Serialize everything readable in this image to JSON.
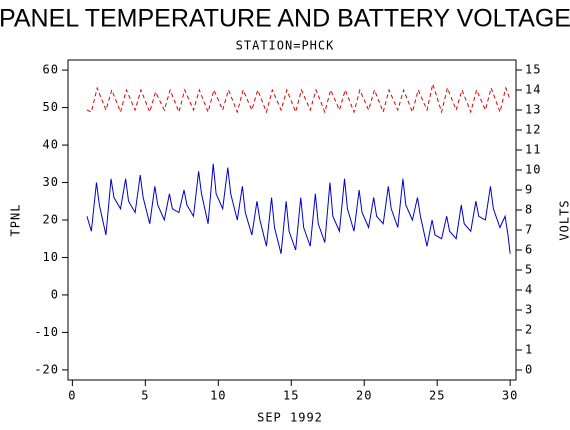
{
  "chart_data": {
    "type": "line",
    "title": "PANEL TEMPERATURE AND BATTERY VOLTAGE",
    "subtitle": "STATION=PHCK",
    "xlabel": "SEP 1992",
    "ylabel": "TPNL",
    "y2label": "VOLTS",
    "xlim": [
      -0.3,
      30.4
    ],
    "xticks": [
      0,
      5,
      10,
      15,
      20,
      25,
      30
    ],
    "ylim": [
      -22.7,
      62.7
    ],
    "yticks": [
      -20,
      -10,
      0,
      10,
      20,
      30,
      40,
      50,
      60
    ],
    "y2lim": [
      -0.5,
      15.5
    ],
    "y2ticks": [
      0,
      1,
      2,
      3,
      4,
      5,
      6,
      7,
      8,
      9,
      10,
      11,
      12,
      13,
      14,
      15
    ],
    "series": [
      {
        "name": "TPNL",
        "color": "#0000cc",
        "dash": false,
        "axis": "y",
        "x": [
          1.0,
          1.3,
          1.65,
          1.85,
          2.3,
          2.65,
          2.85,
          3.3,
          3.65,
          3.85,
          4.3,
          4.65,
          4.85,
          5.3,
          5.65,
          5.85,
          6.3,
          6.65,
          6.85,
          7.3,
          7.65,
          7.85,
          8.3,
          8.65,
          8.85,
          9.3,
          9.65,
          9.85,
          10.3,
          10.65,
          10.85,
          11.3,
          11.65,
          11.85,
          12.3,
          12.65,
          12.85,
          13.3,
          13.65,
          13.85,
          14.3,
          14.65,
          14.85,
          15.3,
          15.65,
          15.85,
          16.3,
          16.65,
          16.85,
          17.3,
          17.65,
          17.85,
          18.3,
          18.65,
          18.85,
          19.3,
          19.65,
          19.85,
          20.3,
          20.65,
          20.85,
          21.3,
          21.65,
          21.85,
          22.3,
          22.65,
          22.85,
          23.3,
          23.65,
          23.85,
          24.3,
          24.65,
          24.85,
          25.3,
          25.65,
          25.85,
          26.3,
          26.65,
          26.85,
          27.3,
          27.65,
          27.85,
          28.3,
          28.65,
          28.85,
          29.3,
          29.65,
          29.85,
          30.0
        ],
        "values": [
          21,
          17,
          30,
          24,
          16,
          31,
          26,
          23,
          31,
          25,
          22,
          32,
          26,
          19,
          29,
          24,
          20,
          27,
          23,
          22,
          28,
          24,
          21,
          33,
          27,
          19,
          35,
          27,
          23,
          34,
          27,
          20,
          29,
          22,
          16,
          25,
          20,
          13,
          26,
          18,
          11,
          25,
          17,
          12,
          26,
          18,
          13,
          27,
          19,
          14,
          30,
          21,
          17,
          31,
          23,
          17,
          28,
          22,
          18,
          26,
          21,
          19,
          29,
          23,
          18,
          31,
          24,
          20,
          26,
          21,
          13,
          20,
          16,
          15,
          21,
          17,
          15,
          24,
          19,
          17,
          25,
          21,
          20,
          29,
          23,
          18,
          21,
          16,
          11
        ]
      },
      {
        "name": "VOLTS",
        "color": "#dd0000",
        "dash": true,
        "axis": "y2",
        "x": [
          1.0,
          1.3,
          1.7,
          2.3,
          2.7,
          3.3,
          3.7,
          4.3,
          4.7,
          5.3,
          5.7,
          6.3,
          6.7,
          7.3,
          7.7,
          8.3,
          8.7,
          9.3,
          9.7,
          10.3,
          10.7,
          11.3,
          11.7,
          12.3,
          12.7,
          13.3,
          13.7,
          14.3,
          14.7,
          15.3,
          15.7,
          16.3,
          16.7,
          17.3,
          17.7,
          18.3,
          18.7,
          19.3,
          19.7,
          20.3,
          20.7,
          21.3,
          21.7,
          22.3,
          22.7,
          23.3,
          23.7,
          24.3,
          24.7,
          25.3,
          25.7,
          26.3,
          26.7,
          27.3,
          27.7,
          28.3,
          28.7,
          29.3,
          29.7,
          30.0
        ],
        "values": [
          13.0,
          12.9,
          14.1,
          13.0,
          14.0,
          12.9,
          14.0,
          13.0,
          14.0,
          12.9,
          13.9,
          13.0,
          14.0,
          12.9,
          14.0,
          13.0,
          14.0,
          12.9,
          14.0,
          13.0,
          14.0,
          12.9,
          14.0,
          13.0,
          14.0,
          12.9,
          14.0,
          13.0,
          14.0,
          12.9,
          14.0,
          13.0,
          14.0,
          12.9,
          14.0,
          13.0,
          14.0,
          12.9,
          14.0,
          13.0,
          14.0,
          12.9,
          14.0,
          13.0,
          14.0,
          12.9,
          14.0,
          13.0,
          14.3,
          12.9,
          14.1,
          13.0,
          14.0,
          12.9,
          14.0,
          13.0,
          14.1,
          12.9,
          14.1,
          13.5
        ]
      }
    ]
  }
}
